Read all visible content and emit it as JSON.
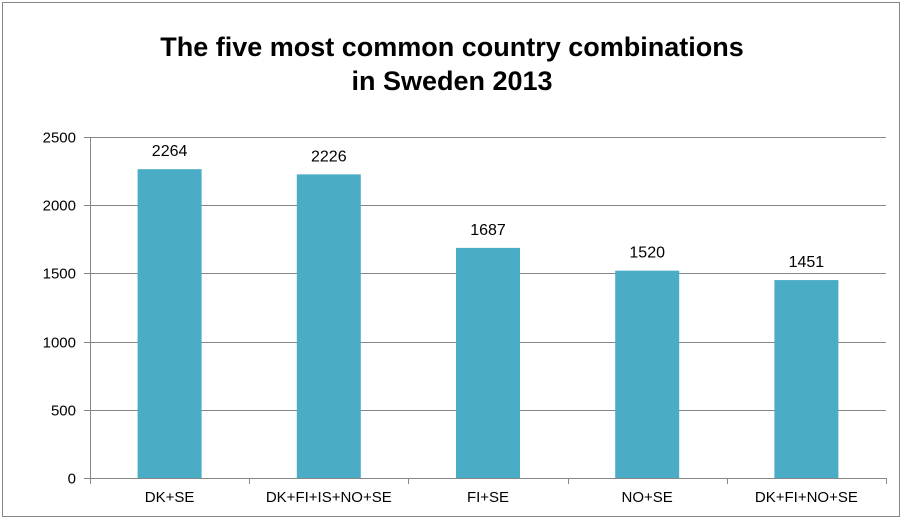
{
  "chart_data": {
    "type": "bar",
    "title": [
      "The five most common country combinations",
      "in Sweden 2013"
    ],
    "categories": [
      "DK+SE",
      "DK+FI+IS+NO+SE",
      "FI+SE",
      "NO+SE",
      "DK+FI+NO+SE"
    ],
    "values": [
      2264,
      2226,
      1687,
      1520,
      1451
    ],
    "ylim": [
      0,
      2500
    ],
    "yticks": [
      0,
      500,
      1000,
      1500,
      2000,
      2500
    ],
    "grid": true,
    "legend": "none",
    "colors": {
      "bar": "#4BACC6",
      "grid": "#868686",
      "frame": "#868686"
    }
  }
}
